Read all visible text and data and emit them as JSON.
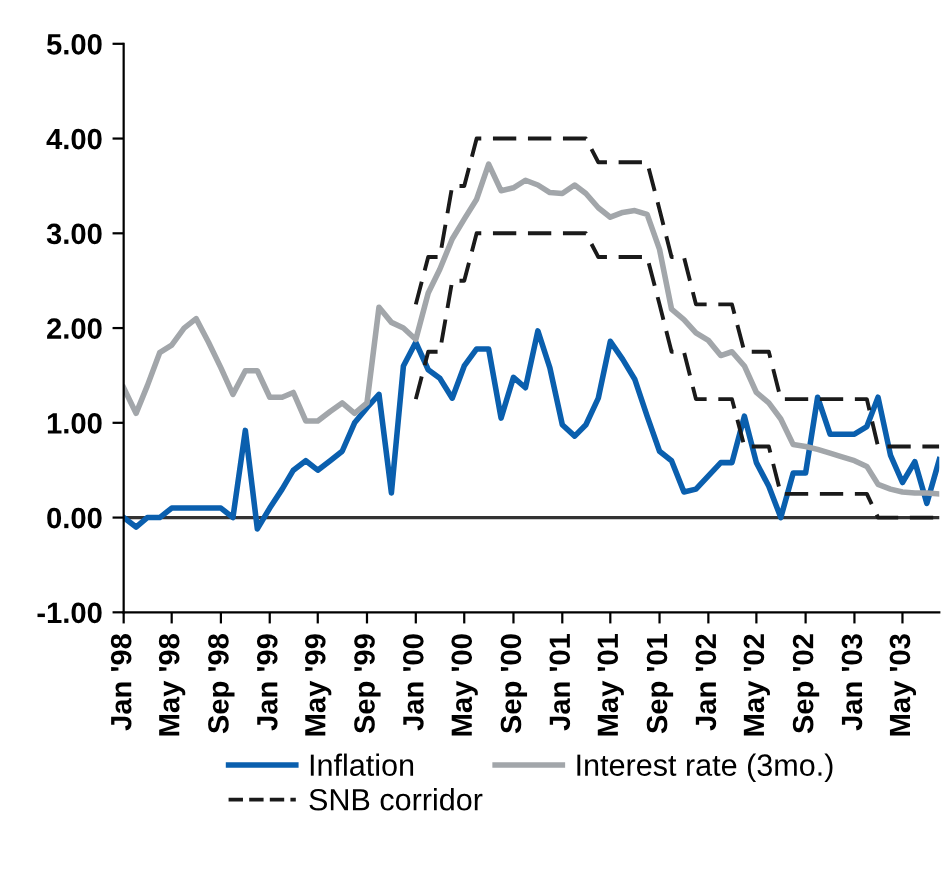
{
  "chart_data": {
    "type": "line",
    "x": [
      "1998-01",
      "1998-02",
      "1998-03",
      "1998-04",
      "1998-05",
      "1998-06",
      "1998-07",
      "1998-08",
      "1998-09",
      "1998-10",
      "1998-11",
      "1998-12",
      "1999-01",
      "1999-02",
      "1999-03",
      "1999-04",
      "1999-05",
      "1999-06",
      "1999-07",
      "1999-08",
      "1999-09",
      "1999-10",
      "1999-11",
      "1999-12",
      "2000-01",
      "2000-02",
      "2000-03",
      "2000-04",
      "2000-05",
      "2000-06",
      "2000-07",
      "2000-08",
      "2000-09",
      "2000-10",
      "2000-11",
      "2000-12",
      "2001-01",
      "2001-02",
      "2001-03",
      "2001-04",
      "2001-05",
      "2001-06",
      "2001-07",
      "2001-08",
      "2001-09",
      "2001-10",
      "2001-11",
      "2001-12",
      "2002-01",
      "2002-02",
      "2002-03",
      "2002-04",
      "2002-05",
      "2002-06",
      "2002-07",
      "2002-08",
      "2002-09",
      "2002-10",
      "2002-11",
      "2002-12",
      "2003-01",
      "2003-02",
      "2003-03",
      "2003-04",
      "2003-05",
      "2003-06",
      "2003-07",
      "2003-08"
    ],
    "series": [
      {
        "name": "Inflation",
        "color": "#0a5fae",
        "line_style": "solid",
        "values": [
          0,
          -0.1,
          0,
          0,
          0.1,
          0.1,
          0.1,
          0.1,
          0.1,
          0,
          0.92,
          -0.12,
          0.1,
          0.3,
          0.5,
          0.6,
          0.5,
          0.6,
          0.7,
          1.0,
          1.16,
          1.3,
          0.26,
          1.6,
          1.85,
          1.56,
          1.47,
          1.26,
          1.6,
          1.78,
          1.78,
          1.05,
          1.48,
          1.37,
          1.97,
          1.58,
          0.98,
          0.86,
          0.98,
          1.26,
          1.86,
          1.67,
          1.46,
          1.07,
          0.7,
          0.6,
          0.27,
          0.3,
          0.44,
          0.58,
          0.58,
          1.07,
          0.58,
          0.33,
          0.0,
          0.47,
          0.47,
          1.27,
          0.88,
          0.88,
          0.88,
          0.96,
          1.27,
          0.66,
          0.37,
          0.59,
          0.15,
          0.61
        ]
      },
      {
        "name": "Interest rate (3mo.)",
        "color": "#a2a6aa",
        "line_style": "solid",
        "values": [
          1.37,
          1.1,
          1.39,
          1.74,
          1.82,
          2.0,
          2.1,
          1.85,
          1.58,
          1.3,
          1.55,
          1.55,
          1.27,
          1.27,
          1.32,
          1.02,
          1.02,
          1.12,
          1.21,
          1.1,
          1.21,
          2.22,
          2.06,
          2.0,
          1.88,
          2.37,
          2.62,
          2.94,
          3.15,
          3.36,
          3.73,
          3.45,
          3.48,
          3.56,
          3.51,
          3.43,
          3.42,
          3.51,
          3.42,
          3.27,
          3.17,
          3.22,
          3.24,
          3.2,
          2.83,
          2.2,
          2.09,
          1.95,
          1.87,
          1.71,
          1.75,
          1.6,
          1.32,
          1.21,
          1.04,
          0.77,
          0.75,
          0.72,
          0.68,
          0.64,
          0.6,
          0.54,
          0.35,
          0.3,
          0.27,
          0.26,
          0.26,
          0.25
        ]
      },
      {
        "name": "SNB corridor",
        "color": "#1a1a1a",
        "line_style": "dashed",
        "values": [
          null,
          null,
          null,
          null,
          null,
          null,
          null,
          null,
          null,
          null,
          null,
          null,
          null,
          null,
          null,
          null,
          null,
          null,
          null,
          null,
          null,
          null,
          null,
          null,
          2.25,
          2.75,
          2.75,
          3.5,
          3.5,
          4.0,
          4.0,
          4.0,
          4.0,
          4.0,
          4.0,
          4.0,
          4.0,
          4.0,
          4.0,
          3.75,
          3.75,
          3.75,
          3.75,
          3.75,
          3.25,
          2.75,
          2.75,
          2.25,
          2.25,
          2.25,
          2.25,
          1.75,
          1.75,
          1.75,
          1.25,
          1.25,
          1.25,
          1.25,
          1.25,
          1.25,
          1.25,
          1.25,
          0.75,
          0.75,
          0.75,
          0.75,
          0.75,
          0.75
        ]
      },
      {
        "color": "#1a1a1a",
        "line_style": "dashed",
        "values": [
          null,
          null,
          null,
          null,
          null,
          null,
          null,
          null,
          null,
          null,
          null,
          null,
          null,
          null,
          null,
          null,
          null,
          null,
          null,
          null,
          null,
          null,
          null,
          null,
          1.25,
          1.75,
          1.75,
          2.5,
          2.5,
          3.0,
          3.0,
          3.0,
          3.0,
          3.0,
          3.0,
          3.0,
          3.0,
          3.0,
          3.0,
          2.75,
          2.75,
          2.75,
          2.75,
          2.75,
          2.25,
          1.75,
          1.75,
          1.25,
          1.25,
          1.25,
          1.25,
          0.75,
          0.75,
          0.75,
          0.25,
          0.25,
          0.25,
          0.25,
          0.25,
          0.25,
          0.25,
          0.25,
          0.0,
          0.0,
          0.0,
          0.0,
          0.0,
          0.0
        ]
      }
    ],
    "xlim": [
      "1998-01",
      "2003-08"
    ],
    "xticks": [
      {
        "value": "1998-01",
        "label": "Jan '98"
      },
      {
        "value": "1998-05",
        "label": "May '98"
      },
      {
        "value": "1998-09",
        "label": "Sep '98"
      },
      {
        "value": "1999-01",
        "label": "Jan '99"
      },
      {
        "value": "1999-05",
        "label": "May '99"
      },
      {
        "value": "1999-09",
        "label": "Sep '99"
      },
      {
        "value": "2000-01",
        "label": "Jan '00"
      },
      {
        "value": "2000-05",
        "label": "May '00"
      },
      {
        "value": "2000-09",
        "label": "Sep '00"
      },
      {
        "value": "2001-01",
        "label": "Jan '01"
      },
      {
        "value": "2001-05",
        "label": "May '01"
      },
      {
        "value": "2001-09",
        "label": "Sep '01"
      },
      {
        "value": "2002-01",
        "label": "Jan '02"
      },
      {
        "value": "2002-05",
        "label": "May '02"
      },
      {
        "value": "2002-09",
        "label": "Sep '02"
      },
      {
        "value": "2003-01",
        "label": "Jan '03"
      },
      {
        "value": "2003-05",
        "label": "May '03"
      }
    ],
    "ylim": [
      -1,
      5
    ],
    "yticks": [
      {
        "value": -1,
        "label": "-1.00"
      },
      {
        "value": 0,
        "label": "0.00"
      },
      {
        "value": 1,
        "label": "1.00"
      },
      {
        "value": 2,
        "label": "2.00"
      },
      {
        "value": 3,
        "label": "3.00"
      },
      {
        "value": 4,
        "label": "4.00"
      },
      {
        "value": 5,
        "label": "5.00"
      }
    ],
    "ref_lines": [
      {
        "axis": "y",
        "value": 0,
        "color": "#333333",
        "line_style": "solid"
      }
    ],
    "grid": false,
    "legend": "bottom",
    "marker": "none"
  }
}
